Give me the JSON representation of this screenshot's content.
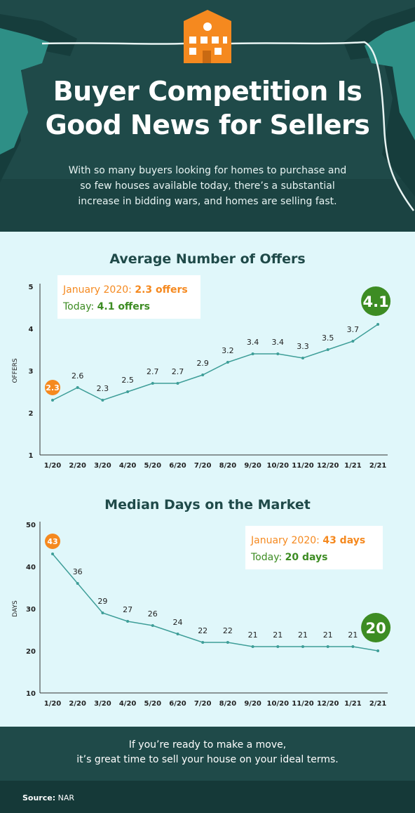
{
  "header": {
    "title_line1": "Buyer Competition Is",
    "title_line2": "Good News for Sellers",
    "subtitle_line1": "With so many buyers looking for homes to purchase and",
    "subtitle_line2": "so few houses available today, there’s a substantial",
    "subtitle_line3": "increase in bidding wars, and homes are selling fast."
  },
  "colors": {
    "dark_teal": "#1f4a49",
    "background": "#e0f7fa",
    "line": "#3e9e98",
    "orange": "#f5891f",
    "green": "#3d8c23"
  },
  "chart_data": [
    {
      "type": "line",
      "title": "Average Number of Offers",
      "ylabel": "OFFERS",
      "xlabel": "",
      "ylim": [
        1,
        5
      ],
      "yticks": [
        1,
        2,
        3,
        4,
        5
      ],
      "categories": [
        "1/20",
        "2/20",
        "3/20",
        "4/20",
        "5/20",
        "6/20",
        "7/20",
        "8/20",
        "9/20",
        "10/20",
        "11/20",
        "12/20",
        "1/21",
        "2/21"
      ],
      "values": [
        2.3,
        2.6,
        2.3,
        2.5,
        2.7,
        2.7,
        2.9,
        3.2,
        3.4,
        3.4,
        3.3,
        3.5,
        3.7,
        4.1
      ],
      "highlight_first": "2.3",
      "highlight_last": "4.1",
      "legend": {
        "line1_label": "January 2020: ",
        "line1_value": "2.3 offers",
        "line2_label": "Today: ",
        "line2_value": "4.1 offers",
        "placement": "top-left"
      },
      "grid": false
    },
    {
      "type": "line",
      "title": "Median Days on the Market",
      "ylabel": "DAYS",
      "xlabel": "",
      "ylim": [
        10,
        50
      ],
      "yticks": [
        10,
        20,
        30,
        40,
        50
      ],
      "categories": [
        "1/20",
        "2/20",
        "3/20",
        "4/20",
        "5/20",
        "6/20",
        "7/20",
        "8/20",
        "9/20",
        "10/20",
        "11/20",
        "12/20",
        "1/21",
        "2/21"
      ],
      "values": [
        43,
        36,
        29,
        27,
        26,
        24,
        22,
        22,
        21,
        21,
        21,
        21,
        21,
        20
      ],
      "highlight_first": "43",
      "highlight_last": "20",
      "legend": {
        "line1_label": "January 2020: ",
        "line1_value": "43 days",
        "line2_label": "Today: ",
        "line2_value": "20 days",
        "placement": "top-right"
      },
      "grid": false
    }
  ],
  "footer": {
    "line1": "If you’re ready to make a move,",
    "line2": "it’s great time to sell your house on your ideal terms."
  },
  "source": {
    "label": "Source:",
    "value": "NAR"
  }
}
